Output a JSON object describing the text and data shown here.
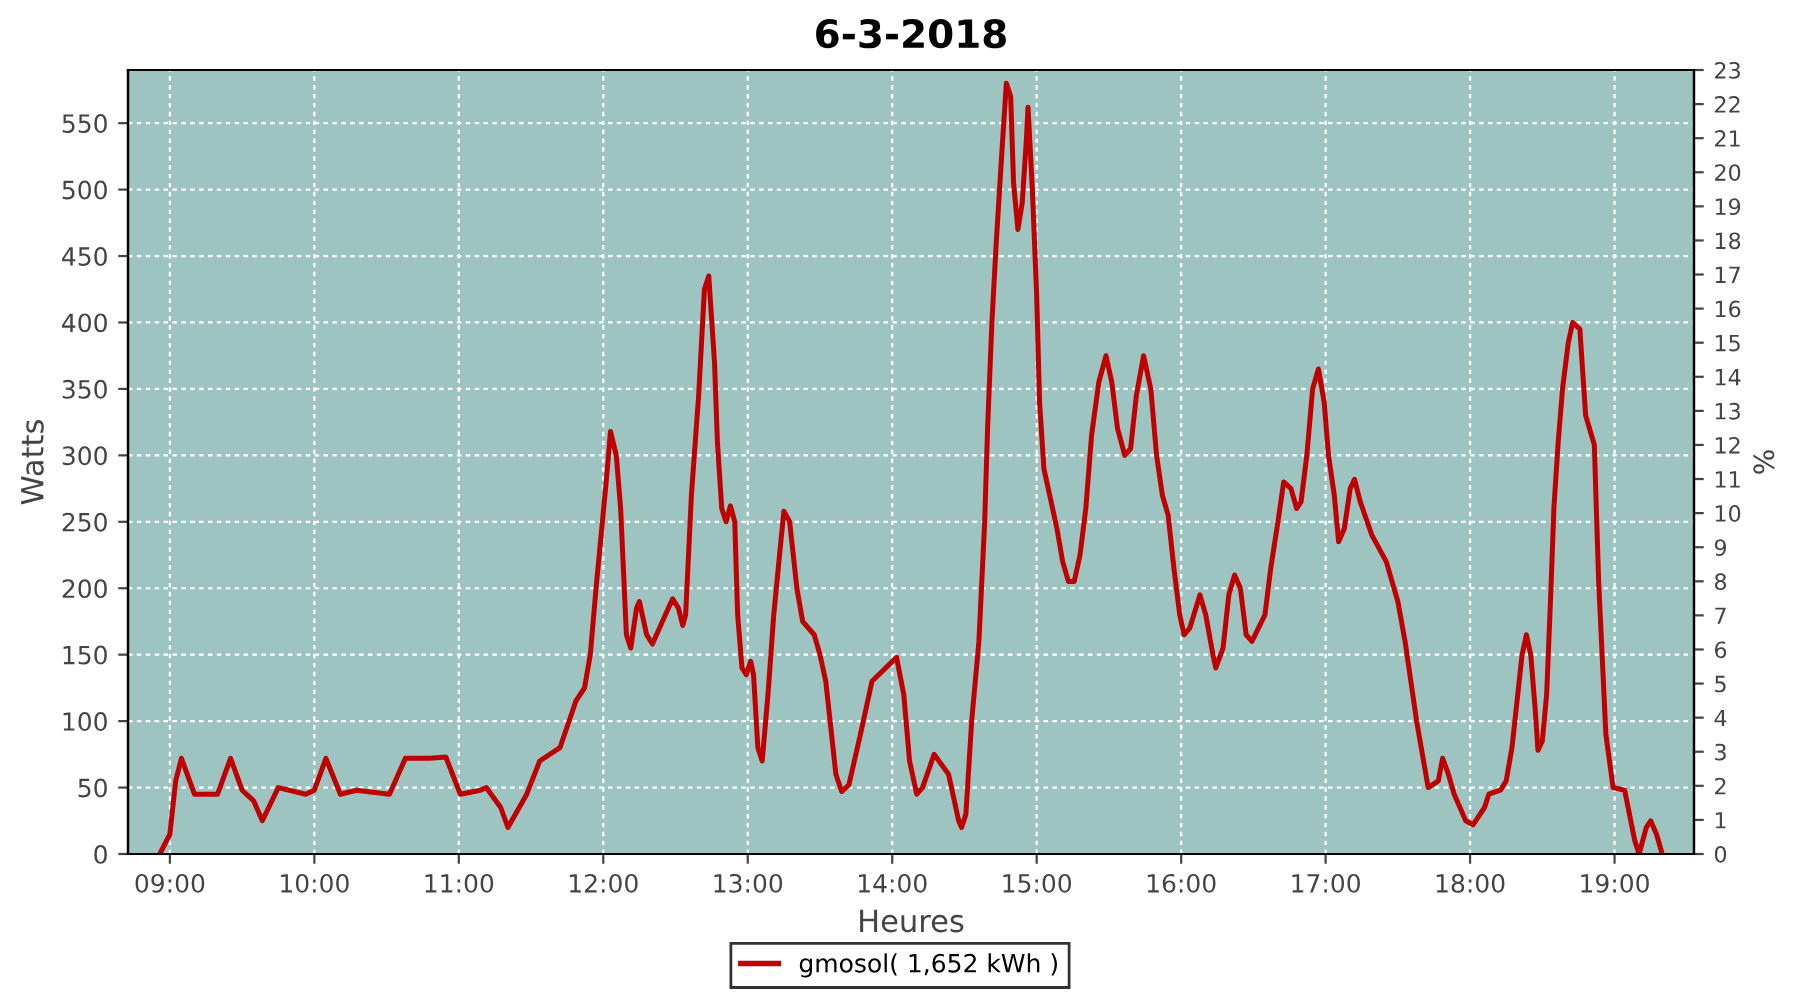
{
  "chart_data": {
    "type": "line",
    "title": "6-3-2018",
    "xlabel": "Heures",
    "ylabel": "Watts",
    "y2label": "%",
    "xlim": [
      8.71,
      19.55
    ],
    "xticks": [
      {
        "value": 9,
        "label": "09:00"
      },
      {
        "value": 10,
        "label": "10:00"
      },
      {
        "value": 11,
        "label": "11:00"
      },
      {
        "value": 12,
        "label": "12:00"
      },
      {
        "value": 13,
        "label": "13:00"
      },
      {
        "value": 14,
        "label": "14:00"
      },
      {
        "value": 15,
        "label": "15:00"
      },
      {
        "value": 16,
        "label": "16:00"
      },
      {
        "value": 17,
        "label": "17:00"
      },
      {
        "value": 18,
        "label": "18:00"
      },
      {
        "value": 19,
        "label": "19:00"
      }
    ],
    "ylim": [
      0,
      590
    ],
    "yticks": [
      0,
      50,
      100,
      150,
      200,
      250,
      300,
      350,
      400,
      450,
      500,
      550
    ],
    "y2lim": [
      0,
      23
    ],
    "y2ticks": [
      0,
      1,
      2,
      3,
      4,
      5,
      6,
      7,
      8,
      9,
      10,
      11,
      12,
      13,
      14,
      15,
      16,
      17,
      18,
      19,
      20,
      21,
      22,
      23
    ],
    "grid": true,
    "legend": "bottom",
    "line_style": "solid",
    "marker": "none",
    "series": [
      {
        "name": "gmosol( 1,652 kWh )",
        "color": "#c00000",
        "x": [
          8.93,
          9.0,
          9.04,
          9.08,
          9.17,
          9.33,
          9.42,
          9.5,
          9.58,
          9.64,
          9.75,
          9.94,
          10.0,
          10.08,
          10.18,
          10.29,
          10.52,
          10.63,
          10.8,
          10.91,
          11.01,
          11.15,
          11.19,
          11.29,
          11.34,
          11.47,
          11.56,
          11.7,
          11.81,
          11.87,
          11.91,
          11.95,
          12.02,
          12.05,
          12.09,
          12.12,
          12.16,
          12.19,
          12.23,
          12.25,
          12.3,
          12.34,
          12.43,
          12.48,
          12.52,
          12.55,
          12.57,
          12.61,
          12.66,
          12.7,
          12.73,
          12.77,
          12.79,
          12.82,
          12.85,
          12.88,
          12.91,
          12.93,
          12.96,
          12.99,
          13.02,
          13.04,
          13.07,
          13.1,
          13.14,
          13.18,
          13.22,
          13.25,
          13.29,
          13.34,
          13.38,
          13.46,
          13.5,
          13.54,
          13.57,
          13.61,
          13.65,
          13.7,
          13.78,
          13.86,
          14.03,
          14.08,
          14.12,
          14.17,
          14.21,
          14.29,
          14.39,
          14.46,
          14.48,
          14.51,
          14.55,
          14.6,
          14.64,
          14.66,
          14.69,
          14.72,
          14.76,
          14.79,
          14.82,
          14.84,
          14.87,
          14.9,
          14.93,
          14.94,
          14.97,
          15.0,
          15.02,
          15.05,
          15.09,
          15.14,
          15.18,
          15.22,
          15.26,
          15.3,
          15.34,
          15.38,
          15.43,
          15.48,
          15.52,
          15.56,
          15.61,
          15.65,
          15.69,
          15.74,
          15.79,
          15.83,
          15.87,
          15.91,
          15.95,
          15.99,
          16.02,
          16.06,
          16.13,
          16.17,
          16.22,
          16.24,
          16.29,
          16.33,
          16.37,
          16.41,
          16.45,
          16.49,
          16.58,
          16.62,
          16.67,
          16.71,
          16.76,
          16.8,
          16.83,
          16.87,
          16.91,
          16.95,
          16.99,
          17.02,
          17.06,
          17.09,
          17.13,
          17.17,
          17.2,
          17.24,
          17.32,
          17.42,
          17.5,
          17.55,
          17.59,
          17.63,
          17.67,
          17.71,
          17.78,
          17.81,
          17.85,
          17.89,
          17.97,
          18.02,
          18.1,
          18.13,
          18.21,
          18.25,
          18.29,
          18.33,
          18.36,
          18.39,
          18.42,
          18.45,
          18.47,
          18.5,
          18.53,
          18.56,
          18.58,
          18.61,
          18.64,
          18.68,
          18.71,
          18.76,
          18.8,
          18.86,
          18.89,
          18.94,
          18.99,
          19.07,
          19.14,
          19.17,
          19.22,
          19.25,
          19.29,
          19.33
        ],
        "values": [
          0,
          15,
          55,
          72,
          45,
          45,
          72,
          48,
          40,
          25,
          50,
          45,
          48,
          72,
          45,
          48,
          45,
          72,
          72,
          73,
          45,
          48,
          50,
          35,
          20,
          45,
          70,
          80,
          115,
          125,
          150,
          200,
          280,
          318,
          300,
          260,
          165,
          155,
          185,
          190,
          165,
          158,
          180,
          192,
          185,
          172,
          180,
          270,
          345,
          425,
          435,
          370,
          310,
          260,
          250,
          262,
          250,
          180,
          140,
          135,
          145,
          135,
          80,
          70,
          120,
          180,
          225,
          258,
          250,
          200,
          175,
          165,
          150,
          130,
          100,
          60,
          47,
          52,
          90,
          130,
          148,
          120,
          70,
          45,
          50,
          75,
          60,
          25,
          20,
          30,
          100,
          160,
          250,
          320,
          400,
          460,
          530,
          580,
          570,
          505,
          470,
          490,
          540,
          562,
          500,
          420,
          340,
          290,
          270,
          245,
          220,
          205,
          205,
          225,
          260,
          315,
          355,
          375,
          355,
          320,
          300,
          305,
          345,
          375,
          350,
          300,
          270,
          255,
          215,
          180,
          165,
          170,
          195,
          180,
          150,
          140,
          155,
          195,
          210,
          200,
          165,
          160,
          180,
          215,
          250,
          280,
          275,
          260,
          265,
          300,
          350,
          365,
          340,
          300,
          270,
          235,
          245,
          275,
          282,
          265,
          240,
          220,
          190,
          160,
          130,
          100,
          75,
          50,
          55,
          72,
          60,
          45,
          25,
          22,
          35,
          45,
          48,
          55,
          80,
          120,
          150,
          165,
          150,
          110,
          78,
          85,
          120,
          200,
          260,
          310,
          350,
          385,
          400,
          395,
          330,
          308,
          205,
          90,
          50,
          48,
          10,
          0,
          20,
          25,
          15,
          0
        ]
      }
    ]
  }
}
